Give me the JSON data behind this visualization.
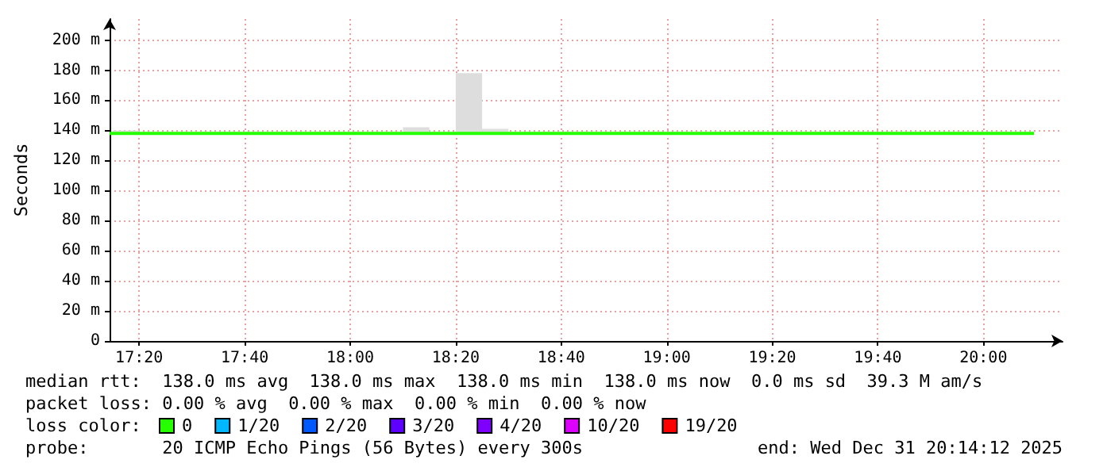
{
  "chart_data": {
    "type": "line",
    "ylabel": "Seconds",
    "legend_title": "loss color:",
    "legend": "bottom",
    "grid": true,
    "marker": "none",
    "line_style": "solid",
    "xlim": [
      17.24,
      20.25
    ],
    "xticks": [
      {
        "value": 17.3333,
        "label": "17:20"
      },
      {
        "value": 17.6667,
        "label": "17:40"
      },
      {
        "value": 18,
        "label": "18:00"
      },
      {
        "value": 18.3333,
        "label": "18:20"
      },
      {
        "value": 18.6667,
        "label": "18:40"
      },
      {
        "value": 19,
        "label": "19:00"
      },
      {
        "value": 19.3333,
        "label": "19:20"
      },
      {
        "value": 19.6667,
        "label": "19:40"
      },
      {
        "value": 20,
        "label": "20:00"
      }
    ],
    "ylim": [
      0,
      214
    ],
    "yticks": [
      0,
      {
        "value": 20,
        "label": "20 m"
      },
      {
        "value": 40,
        "label": "40 m"
      },
      {
        "value": 60,
        "label": "60 m"
      },
      {
        "value": 80,
        "label": "80 m"
      },
      {
        "value": 100,
        "label": "100 m"
      },
      {
        "value": 120,
        "label": "120 m"
      },
      {
        "value": 140,
        "label": "140 m"
      },
      {
        "value": 160,
        "label": "160 m"
      },
      {
        "value": 180,
        "label": "180 m"
      },
      {
        "value": 200,
        "label": "200 m"
      }
    ],
    "series": [
      {
        "type": "bar",
        "color": "#dddddd",
        "x": [
          17.2917,
          18.2083,
          18.375,
          18.4583
        ],
        "base": [
          138,
          138,
          138,
          138
        ],
        "values": [
          2,
          4,
          40,
          3
        ]
      },
      {
        "name": "0",
        "color": "#26ff00",
        "x": [
          17.24,
          20.16
        ],
        "values": [
          138,
          138
        ]
      },
      {
        "name": "1/20",
        "color": "#00b8ff"
      },
      {
        "name": "2/20",
        "color": "#0059ff"
      },
      {
        "name": "3/20",
        "color": "#5e00ff"
      },
      {
        "name": "4/20",
        "color": "#7e00ff"
      },
      {
        "name": "10/20",
        "color": "#dd00ff"
      },
      {
        "name": "19/20",
        "color": "#ff0000"
      }
    ],
    "annotations": [
      "median rtt:  138.0 ms avg  138.0 ms max  138.0 ms min  138.0 ms now  0.0 ms sd  39.3 M am/s",
      "packet loss: 0.00 % avg  0.00 % max  0.00 % min  0.00 % now",
      "probe:       20 ICMP Echo Pings (56 Bytes) every 300s",
      "end: Wed Dec 31 20:14:12 2025"
    ]
  }
}
